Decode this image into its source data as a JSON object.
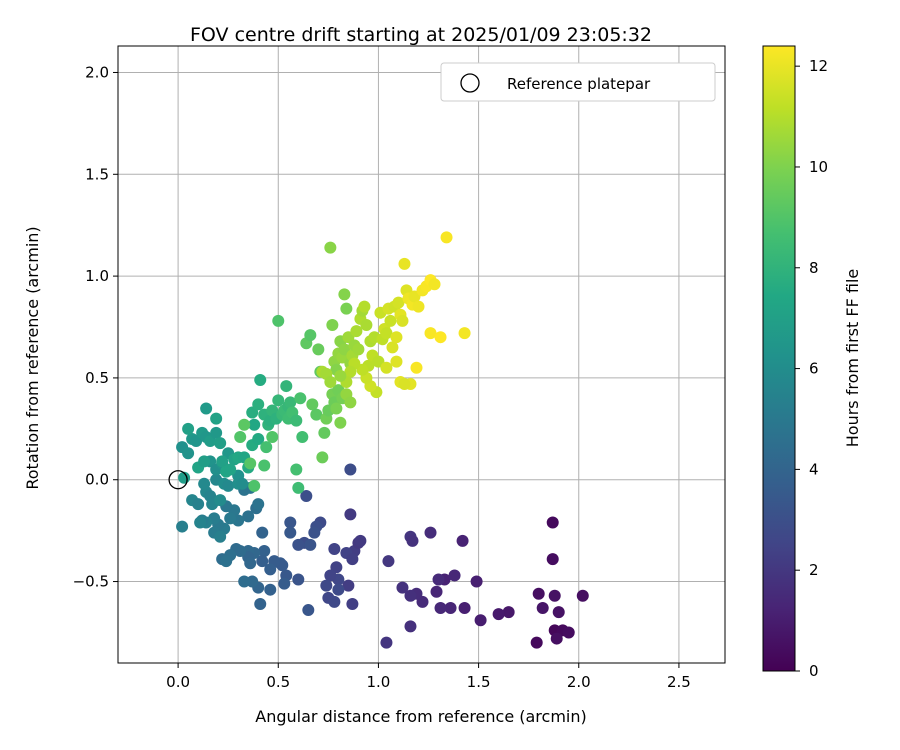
{
  "chart_data": {
    "type": "scatter",
    "title": "FOV centre drift starting at 2025/01/09 23:05:32",
    "xlabel": "Angular distance from reference (arcmin)",
    "ylabel": "Rotation from reference (arcmin)",
    "xlim": [
      -0.3,
      2.73
    ],
    "ylim": [
      -0.9,
      2.13
    ],
    "xticks": [
      0.0,
      0.5,
      1.0,
      1.5,
      2.0,
      2.5
    ],
    "yticks": [
      -0.5,
      0.0,
      0.5,
      1.0,
      1.5,
      2.0
    ],
    "xtick_labels": [
      "0.0",
      "0.5",
      "1.0",
      "1.5",
      "2.0",
      "2.5"
    ],
    "ytick_labels": [
      "−0.5",
      "0.0",
      "0.5",
      "1.0",
      "1.5",
      "2.0"
    ],
    "grid": true,
    "legend": {
      "placement": "top-right",
      "entries": [
        "Reference platepar"
      ]
    },
    "reference_point": {
      "x": 0.0,
      "y": 0.0
    },
    "colorbar": {
      "label": "Hours from first FF file",
      "range": [
        0,
        12.4
      ],
      "ticks": [
        0,
        2,
        4,
        6,
        8,
        10,
        12
      ],
      "tick_labels": [
        "0",
        "2",
        "4",
        "6",
        "8",
        "10",
        "12"
      ],
      "colormap": "viridis"
    },
    "points": [
      [
        1.87,
        -0.21,
        0.3
      ],
      [
        1.87,
        -0.39,
        0.4
      ],
      [
        1.8,
        -0.56,
        0.5
      ],
      [
        1.88,
        -0.57,
        0.6
      ],
      [
        2.02,
        -0.57,
        0.5
      ],
      [
        1.82,
        -0.63,
        0.7
      ],
      [
        1.9,
        -0.65,
        0.6
      ],
      [
        1.88,
        -0.74,
        0.2
      ],
      [
        1.92,
        -0.74,
        0.3
      ],
      [
        1.95,
        -0.75,
        0.4
      ],
      [
        1.79,
        -0.8,
        0.3
      ],
      [
        1.89,
        -0.78,
        0.5
      ],
      [
        1.65,
        -0.65,
        0.8
      ],
      [
        1.6,
        -0.66,
        0.9
      ],
      [
        1.51,
        -0.69,
        1.0
      ],
      [
        1.49,
        -0.5,
        1.1
      ],
      [
        1.42,
        -0.3,
        1.2
      ],
      [
        1.43,
        -0.63,
        1.1
      ],
      [
        1.36,
        -0.63,
        1.3
      ],
      [
        1.33,
        -0.49,
        1.2
      ],
      [
        1.38,
        -0.47,
        1.4
      ],
      [
        1.3,
        -0.49,
        1.5
      ],
      [
        1.29,
        -0.55,
        1.3
      ],
      [
        1.26,
        -0.26,
        1.6
      ],
      [
        1.31,
        -0.63,
        1.4
      ],
      [
        1.22,
        -0.6,
        1.5
      ],
      [
        1.19,
        -0.56,
        1.6
      ],
      [
        1.16,
        -0.57,
        1.7
      ],
      [
        1.12,
        -0.53,
        1.8
      ],
      [
        1.16,
        -0.72,
        1.7
      ],
      [
        1.16,
        -0.28,
        1.9
      ],
      [
        1.17,
        -0.3,
        1.8
      ],
      [
        1.05,
        -0.4,
        2.0
      ],
      [
        1.04,
        -0.8,
        1.9
      ],
      [
        0.86,
        -0.17,
        2.1
      ],
      [
        0.88,
        -0.35,
        2.2
      ],
      [
        0.9,
        -0.31,
        2.0
      ],
      [
        0.91,
        -0.3,
        2.1
      ],
      [
        0.85,
        -0.52,
        2.2
      ],
      [
        0.87,
        -0.61,
        2.3
      ],
      [
        0.84,
        -0.36,
        2.4
      ],
      [
        0.87,
        -0.39,
        2.3
      ],
      [
        0.78,
        -0.34,
        2.5
      ],
      [
        0.79,
        -0.43,
        2.4
      ],
      [
        0.8,
        -0.49,
        2.6
      ],
      [
        0.76,
        -0.47,
        2.5
      ],
      [
        0.75,
        -0.58,
        2.6
      ],
      [
        0.78,
        -0.6,
        2.7
      ],
      [
        0.8,
        -0.54,
        2.8
      ],
      [
        0.74,
        -0.52,
        2.7
      ],
      [
        0.86,
        0.05,
        2.9
      ],
      [
        0.71,
        -0.21,
        2.8
      ],
      [
        0.69,
        -0.23,
        3.0
      ],
      [
        0.63,
        -0.31,
        2.9
      ],
      [
        0.64,
        -0.08,
        3.0
      ],
      [
        0.68,
        -0.26,
        3.1
      ],
      [
        0.66,
        -0.32,
        3.2
      ],
      [
        0.6,
        -0.32,
        3.1
      ],
      [
        0.56,
        -0.21,
        3.3
      ],
      [
        0.56,
        -0.26,
        3.4
      ],
      [
        0.6,
        -0.49,
        3.2
      ],
      [
        0.65,
        -0.64,
        3.3
      ],
      [
        0.51,
        -0.41,
        3.5
      ],
      [
        0.54,
        -0.47,
        3.4
      ],
      [
        0.53,
        -0.51,
        3.6
      ],
      [
        0.52,
        -0.42,
        3.5
      ],
      [
        0.48,
        -0.4,
        3.6
      ],
      [
        0.46,
        -0.44,
        3.7
      ],
      [
        0.43,
        -0.35,
        3.8
      ],
      [
        0.42,
        -0.4,
        3.7
      ],
      [
        0.46,
        -0.54,
        3.8
      ],
      [
        0.41,
        -0.61,
        3.9
      ],
      [
        0.4,
        -0.53,
        4.0
      ],
      [
        0.42,
        -0.26,
        3.9
      ],
      [
        0.38,
        -0.36,
        4.1
      ],
      [
        0.35,
        -0.35,
        4.2
      ],
      [
        0.35,
        -0.38,
        4.0
      ],
      [
        0.31,
        -0.35,
        4.3
      ],
      [
        0.36,
        -0.41,
        4.1
      ],
      [
        0.37,
        -0.5,
        4.2
      ],
      [
        0.33,
        -0.5,
        4.4
      ],
      [
        0.29,
        -0.34,
        4.3
      ],
      [
        0.26,
        -0.37,
        4.5
      ],
      [
        0.22,
        -0.39,
        4.4
      ],
      [
        0.24,
        -0.4,
        4.6
      ],
      [
        0.39,
        -0.14,
        4.5
      ],
      [
        0.4,
        -0.12,
        4.7
      ],
      [
        0.35,
        -0.18,
        4.6
      ],
      [
        0.36,
        -0.04,
        4.8
      ],
      [
        0.33,
        -0.05,
        4.7
      ],
      [
        0.28,
        -0.15,
        4.9
      ],
      [
        0.3,
        -0.2,
        4.8
      ],
      [
        0.26,
        -0.19,
        5.0
      ],
      [
        0.24,
        -0.13,
        4.9
      ],
      [
        0.23,
        -0.24,
        5.1
      ],
      [
        0.2,
        -0.22,
        5.0
      ],
      [
        0.18,
        -0.19,
        5.2
      ],
      [
        0.18,
        -0.26,
        5.1
      ],
      [
        0.21,
        -0.28,
        5.3
      ],
      [
        0.14,
        -0.21,
        5.4
      ],
      [
        0.12,
        -0.2,
        5.2
      ],
      [
        0.11,
        -0.21,
        5.5
      ],
      [
        0.02,
        -0.23,
        5.3
      ],
      [
        0.07,
        -0.1,
        5.6
      ],
      [
        0.1,
        -0.12,
        5.4
      ],
      [
        0.14,
        -0.06,
        5.7
      ],
      [
        0.16,
        -0.08,
        5.5
      ],
      [
        0.13,
        -0.02,
        5.8
      ],
      [
        0.17,
        -0.12,
        5.6
      ],
      [
        0.21,
        -0.1,
        5.9
      ],
      [
        0.19,
        0.0,
        5.7
      ],
      [
        0.23,
        -0.02,
        6.0
      ],
      [
        0.25,
        -0.03,
        5.8
      ],
      [
        0.3,
        -0.02,
        6.1
      ],
      [
        0.3,
        0.02,
        6.2
      ],
      [
        0.32,
        -0.02,
        6.0
      ],
      [
        0.16,
        0.09,
        6.3
      ],
      [
        0.19,
        0.05,
        6.1
      ],
      [
        0.22,
        0.08,
        6.4
      ],
      [
        0.25,
        0.13,
        6.5
      ],
      [
        0.02,
        0.16,
        6.2
      ],
      [
        0.05,
        0.13,
        6.3
      ],
      [
        0.07,
        0.2,
        6.6
      ],
      [
        0.09,
        0.19,
        6.4
      ],
      [
        0.12,
        0.23,
        6.7
      ],
      [
        0.14,
        0.21,
        6.5
      ],
      [
        0.16,
        0.19,
        6.8
      ],
      [
        0.19,
        0.23,
        6.6
      ],
      [
        0.21,
        0.18,
        6.9
      ],
      [
        0.05,
        0.25,
        7.0
      ],
      [
        0.14,
        0.35,
        6.7
      ],
      [
        0.19,
        0.3,
        7.1
      ],
      [
        0.03,
        0.01,
        6.8
      ],
      [
        0.1,
        0.06,
        7.2
      ],
      [
        0.13,
        0.09,
        6.9
      ],
      [
        0.22,
        0.09,
        7.0
      ],
      [
        0.24,
        0.04,
        7.3
      ],
      [
        0.28,
        0.1,
        7.1
      ],
      [
        0.3,
        0.11,
        7.4
      ],
      [
        0.26,
        0.05,
        7.2
      ],
      [
        0.35,
        0.06,
        7.5
      ],
      [
        0.33,
        0.11,
        7.3
      ],
      [
        0.37,
        0.17,
        7.6
      ],
      [
        0.38,
        0.27,
        7.4
      ],
      [
        0.37,
        0.33,
        7.7
      ],
      [
        0.4,
        0.2,
        7.5
      ],
      [
        0.4,
        0.37,
        7.8
      ],
      [
        0.41,
        0.49,
        7.6
      ],
      [
        0.43,
        0.32,
        7.9
      ],
      [
        0.45,
        0.27,
        8.0
      ],
      [
        0.46,
        0.29,
        7.8
      ],
      [
        0.47,
        0.34,
        8.1
      ],
      [
        0.49,
        0.3,
        7.9
      ],
      [
        0.5,
        0.39,
        8.2
      ],
      [
        0.52,
        0.32,
        8.3
      ],
      [
        0.54,
        0.46,
        8.1
      ],
      [
        0.53,
        0.34,
        8.4
      ],
      [
        0.55,
        0.36,
        8.2
      ],
      [
        0.55,
        0.3,
        8.5
      ],
      [
        0.56,
        0.38,
        8.3
      ],
      [
        0.57,
        0.33,
        8.6
      ],
      [
        0.59,
        0.29,
        8.4
      ],
      [
        0.59,
        0.05,
        8.7
      ],
      [
        0.6,
        -0.04,
        8.5
      ],
      [
        0.61,
        0.4,
        8.8
      ],
      [
        0.62,
        0.21,
        8.6
      ],
      [
        0.5,
        0.78,
        8.9
      ],
      [
        0.44,
        0.16,
        8.7
      ],
      [
        0.43,
        0.07,
        8.8
      ],
      [
        0.47,
        0.21,
        9.0
      ],
      [
        0.36,
        0.08,
        9.1
      ],
      [
        0.38,
        -0.03,
        8.9
      ],
      [
        0.33,
        0.27,
        9.2
      ],
      [
        0.31,
        0.21,
        9.0
      ],
      [
        0.64,
        0.67,
        9.3
      ],
      [
        0.66,
        0.71,
        9.1
      ],
      [
        0.67,
        0.37,
        9.4
      ],
      [
        0.69,
        0.32,
        9.2
      ],
      [
        0.7,
        0.64,
        9.5
      ],
      [
        0.71,
        0.53,
        9.3
      ],
      [
        0.72,
        0.11,
        9.6
      ],
      [
        0.73,
        0.23,
        9.4
      ],
      [
        0.74,
        0.3,
        9.7
      ],
      [
        0.75,
        0.34,
        9.5
      ],
      [
        0.77,
        0.42,
        9.8
      ],
      [
        0.78,
        0.38,
        9.6
      ],
      [
        0.79,
        0.35,
        9.9
      ],
      [
        0.8,
        0.44,
        9.7
      ],
      [
        0.81,
        0.28,
        10.0
      ],
      [
        0.82,
        0.4,
        9.8
      ],
      [
        0.83,
        0.91,
        10.1
      ],
      [
        0.84,
        0.84,
        9.9
      ],
      [
        0.76,
        1.14,
        10.2
      ],
      [
        0.77,
        0.76,
        10.0
      ],
      [
        0.78,
        0.58,
        10.3
      ],
      [
        0.79,
        0.54,
        10.1
      ],
      [
        0.8,
        0.62,
        10.4
      ],
      [
        0.81,
        0.68,
        10.2
      ],
      [
        0.82,
        0.6,
        10.5
      ],
      [
        0.83,
        0.64,
        10.3
      ],
      [
        0.85,
        0.7,
        10.6
      ],
      [
        0.86,
        0.57,
        10.4
      ],
      [
        0.87,
        0.61,
        10.7
      ],
      [
        0.88,
        0.66,
        10.5
      ],
      [
        0.89,
        0.73,
        10.8
      ],
      [
        0.9,
        0.64,
        10.6
      ],
      [
        0.91,
        0.79,
        10.9
      ],
      [
        0.92,
        0.83,
        10.7
      ],
      [
        0.93,
        0.85,
        11.0
      ],
      [
        0.94,
        0.76,
        10.8
      ],
      [
        0.95,
        0.56,
        11.1
      ],
      [
        0.96,
        0.68,
        10.9
      ],
      [
        0.97,
        0.61,
        11.2
      ],
      [
        0.98,
        0.7,
        11.0
      ],
      [
        0.99,
        0.43,
        11.3
      ],
      [
        1.0,
        0.58,
        11.1
      ],
      [
        1.01,
        0.82,
        11.4
      ],
      [
        1.02,
        0.69,
        11.2
      ],
      [
        1.03,
        0.74,
        11.5
      ],
      [
        1.04,
        0.72,
        11.3
      ],
      [
        1.05,
        0.84,
        11.6
      ],
      [
        1.06,
        0.78,
        11.4
      ],
      [
        1.07,
        0.65,
        11.7
      ],
      [
        1.08,
        0.85,
        11.5
      ],
      [
        1.09,
        0.7,
        11.8
      ],
      [
        1.1,
        0.87,
        11.6
      ],
      [
        1.11,
        0.81,
        11.9
      ],
      [
        1.12,
        0.78,
        11.7
      ],
      [
        1.13,
        1.06,
        12.0
      ],
      [
        1.14,
        0.93,
        11.8
      ],
      [
        1.15,
        0.89,
        12.1
      ],
      [
        1.16,
        0.47,
        11.9
      ],
      [
        1.17,
        0.86,
        12.2
      ],
      [
        1.18,
        0.9,
        12.0
      ],
      [
        1.19,
        0.55,
        12.3
      ],
      [
        1.2,
        0.85,
        12.1
      ],
      [
        1.22,
        0.93,
        12.2
      ],
      [
        1.24,
        0.95,
        12.3
      ],
      [
        1.26,
        0.98,
        12.4
      ],
      [
        1.28,
        0.96,
        12.2
      ],
      [
        1.26,
        0.72,
        12.3
      ],
      [
        1.31,
        0.7,
        12.4
      ],
      [
        1.34,
        1.19,
        12.3
      ],
      [
        1.43,
        0.72,
        12.2
      ],
      [
        1.09,
        0.58,
        11.8
      ],
      [
        1.11,
        0.48,
        11.9
      ],
      [
        1.13,
        0.47,
        11.7
      ],
      [
        1.04,
        0.55,
        11.6
      ],
      [
        0.96,
        0.46,
        11.5
      ],
      [
        0.94,
        0.5,
        11.4
      ],
      [
        0.92,
        0.54,
        11.2
      ],
      [
        0.88,
        0.57,
        11.1
      ],
      [
        0.86,
        0.53,
        11.0
      ],
      [
        0.84,
        0.48,
        10.9
      ],
      [
        0.72,
        0.53,
        10.8
      ],
      [
        0.74,
        0.52,
        10.7
      ],
      [
        0.76,
        0.48,
        10.6
      ],
      [
        0.81,
        0.51,
        10.5
      ],
      [
        0.84,
        0.42,
        10.4
      ],
      [
        0.86,
        0.38,
        10.3
      ]
    ]
  }
}
